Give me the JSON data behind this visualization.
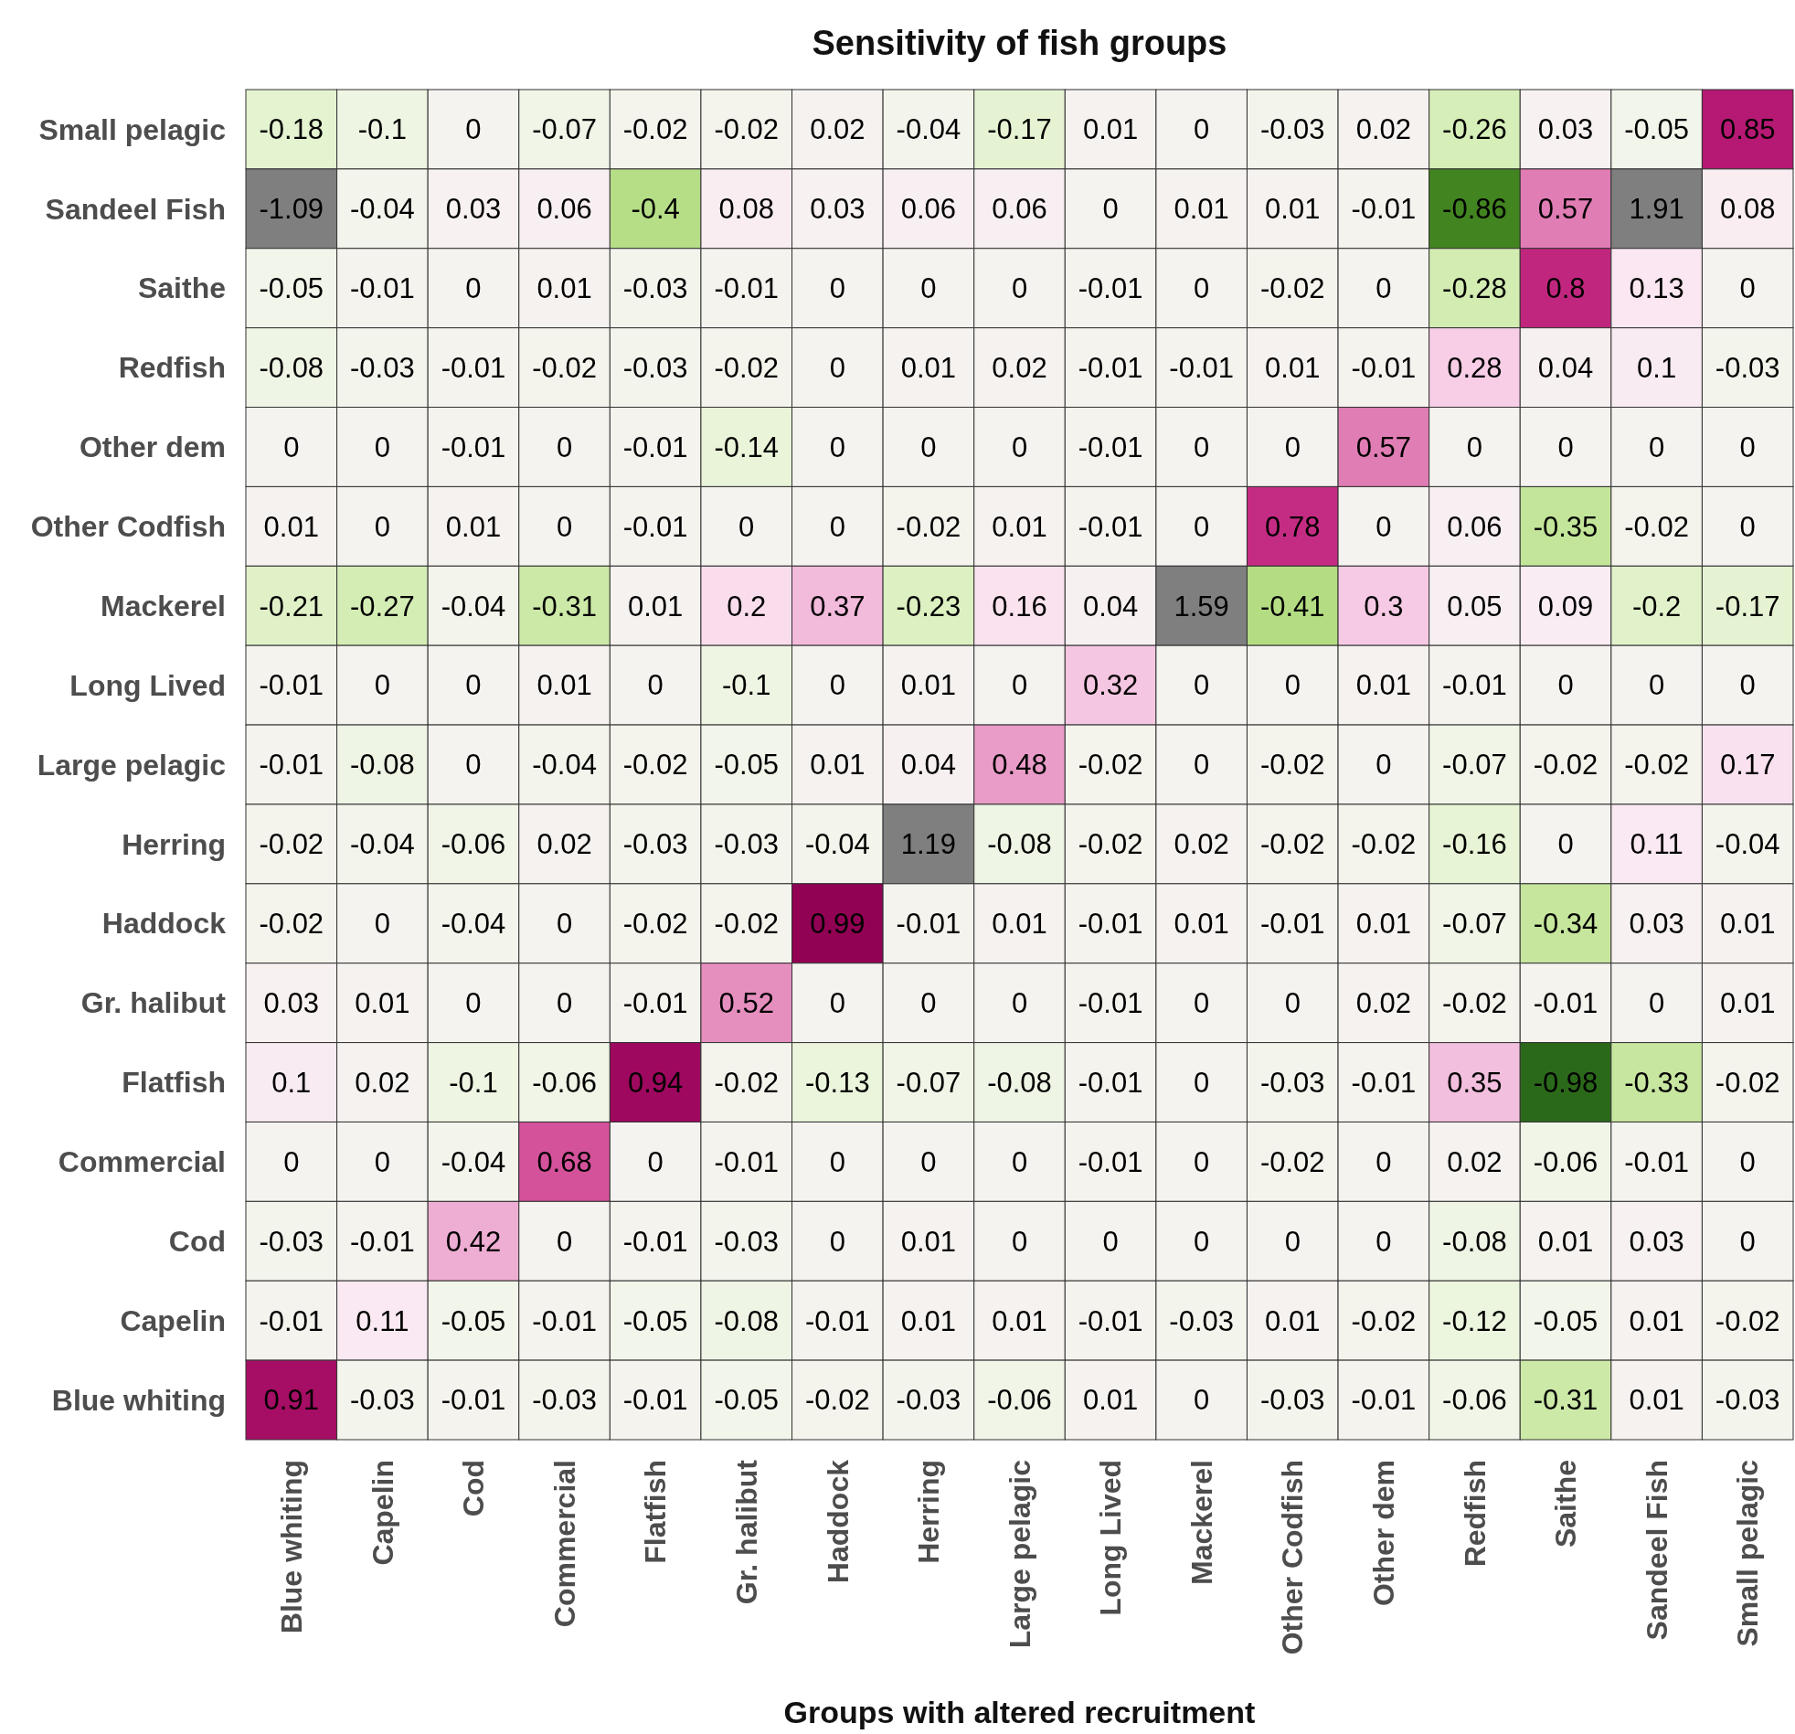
{
  "chart_data": {
    "type": "heatmap",
    "title": "Sensitivity of fish groups",
    "xlabel": "Groups with altered recruitment",
    "categories": [
      "Blue whiting",
      "Capelin",
      "Cod",
      "Commercial",
      "Flatfish",
      "Gr. halibut",
      "Haddock",
      "Herring",
      "Large pelagic",
      "Long Lived",
      "Mackerel",
      "Other Codfish",
      "Other dem",
      "Redfish",
      "Saithe",
      "Sandeel Fish",
      "Small pelagic"
    ],
    "y_categories": [
      "Small pelagic",
      "Sandeel Fish",
      "Saithe",
      "Redfish",
      "Other dem",
      "Other Codfish",
      "Mackerel",
      "Long Lived",
      "Large pelagic",
      "Herring",
      "Haddock",
      "Gr. halibut",
      "Flatfish",
      "Commercial",
      "Cod",
      "Capelin",
      "Blue whiting"
    ],
    "data_labels": true,
    "cells": [
      [
        -0.18,
        -0.1,
        0,
        -0.07,
        -0.02,
        -0.02,
        0.02,
        -0.04,
        -0.17,
        0.01,
        0,
        -0.03,
        0.02,
        -0.26,
        0.03,
        -0.05,
        0.85
      ],
      [
        -1.09,
        -0.04,
        0.03,
        0.06,
        -0.4,
        0.08,
        0.03,
        0.06,
        0.06,
        0,
        0.01,
        0.01,
        -0.01,
        -0.86,
        0.57,
        1.91,
        0.08
      ],
      [
        -0.05,
        -0.01,
        0,
        0.01,
        -0.03,
        -0.01,
        0,
        0,
        0,
        -0.01,
        0,
        -0.02,
        0,
        -0.28,
        0.8,
        0.13,
        0
      ],
      [
        -0.08,
        -0.03,
        -0.01,
        -0.02,
        -0.03,
        -0.02,
        0,
        0.01,
        0.02,
        -0.01,
        -0.01,
        0.01,
        -0.01,
        0.28,
        0.04,
        0.1,
        -0.03
      ],
      [
        0,
        0,
        -0.01,
        0,
        -0.01,
        -0.14,
        0,
        0,
        0,
        -0.01,
        0,
        0,
        0.57,
        0,
        0,
        0,
        0
      ],
      [
        0.01,
        0,
        0.01,
        0,
        -0.01,
        0,
        0,
        -0.02,
        0.01,
        -0.01,
        0,
        0.78,
        0,
        0.06,
        -0.35,
        -0.02,
        0
      ],
      [
        -0.21,
        -0.27,
        -0.04,
        -0.31,
        0.01,
        0.2,
        0.37,
        -0.23,
        0.16,
        0.04,
        1.59,
        -0.41,
        0.3,
        0.05,
        0.09,
        -0.2,
        -0.17
      ],
      [
        -0.01,
        0,
        0,
        0.01,
        0,
        -0.1,
        0,
        0.01,
        0,
        0.32,
        0,
        0,
        0.01,
        -0.01,
        0,
        0,
        0
      ],
      [
        -0.01,
        -0.08,
        0,
        -0.04,
        -0.02,
        -0.05,
        0.01,
        0.04,
        0.48,
        -0.02,
        0,
        -0.02,
        0,
        -0.07,
        -0.02,
        -0.02,
        0.17
      ],
      [
        -0.02,
        -0.04,
        -0.06,
        0.02,
        -0.03,
        -0.03,
        -0.04,
        1.19,
        -0.08,
        -0.02,
        0.02,
        -0.02,
        -0.02,
        -0.16,
        0,
        0.11,
        -0.04
      ],
      [
        -0.02,
        0,
        -0.04,
        0,
        -0.02,
        -0.02,
        0.99,
        -0.01,
        0.01,
        -0.01,
        0.01,
        -0.01,
        0.01,
        -0.07,
        -0.34,
        0.03,
        0.01
      ],
      [
        0.03,
        0.01,
        0,
        0,
        -0.01,
        0.52,
        0,
        0,
        0,
        -0.01,
        0,
        0,
        0.02,
        -0.02,
        -0.01,
        0,
        0.01
      ],
      [
        0.1,
        0.02,
        -0.1,
        -0.06,
        0.94,
        -0.02,
        -0.13,
        -0.07,
        -0.08,
        -0.01,
        0,
        -0.03,
        -0.01,
        0.35,
        -0.98,
        -0.33,
        -0.02
      ],
      [
        0,
        0,
        -0.04,
        0.68,
        0,
        -0.01,
        0,
        0,
        0,
        -0.01,
        0,
        -0.02,
        0,
        0.02,
        -0.06,
        -0.01,
        0
      ],
      [
        -0.03,
        -0.01,
        0.42,
        0,
        -0.01,
        -0.03,
        0,
        0.01,
        0,
        0,
        0,
        0,
        0,
        -0.08,
        0.01,
        0.03,
        0
      ],
      [
        -0.01,
        0.11,
        -0.05,
        -0.01,
        -0.05,
        -0.08,
        -0.01,
        0.01,
        0.01,
        -0.01,
        -0.03,
        0.01,
        -0.02,
        -0.12,
        -0.05,
        0.01,
        -0.02
      ],
      [
        0.91,
        -0.03,
        -0.01,
        -0.03,
        -0.01,
        -0.05,
        -0.02,
        -0.03,
        -0.06,
        0.01,
        0,
        -0.03,
        -0.01,
        -0.06,
        -0.31,
        0.01,
        -0.03
      ]
    ]
  }
}
